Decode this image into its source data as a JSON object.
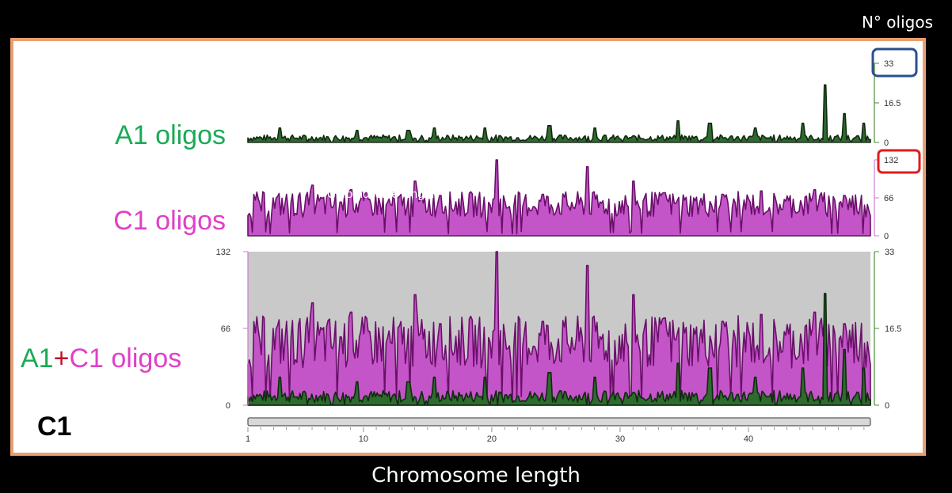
{
  "header": {
    "right_label": "N° oligos"
  },
  "footer": {
    "axis_title": "Chromosome length"
  },
  "panel": {
    "corner_label": "C1",
    "rows": {
      "a1": {
        "text": "A1 oligos",
        "color": "#1aaa55"
      },
      "c1": {
        "text": "C1 oligos",
        "color": "#e040c8"
      },
      "combo": {
        "part1": "A1",
        "plus": "+",
        "part2": "C1 oligos"
      }
    },
    "overlay_text": "Chromosome length"
  },
  "colors": {
    "frame": "#e9a070",
    "a1_fill": "#2e6b2e",
    "a1_line": "#0f2a0f",
    "c1_fill": "#c455c8",
    "c1_line": "#6b0f6b",
    "track_bg": "#c9c9c9",
    "highlight_a1": "#2a4f8f",
    "highlight_c1": "#e01b1b"
  },
  "chart_data": {
    "type": "area",
    "x_range": [
      1,
      49.5
    ],
    "x_ticks": [
      1,
      10,
      20,
      30,
      40
    ],
    "tracks": [
      {
        "name": "A1 oligos",
        "ylim": [
          0,
          33
        ],
        "y_ticks": [
          "0",
          "16.5",
          "33"
        ],
        "peaks": [
          [
            3.5,
            6
          ],
          [
            9.5,
            5
          ],
          [
            13.5,
            5
          ],
          [
            15.5,
            6
          ],
          [
            19.5,
            6
          ],
          [
            24.5,
            7
          ],
          [
            28,
            6
          ],
          [
            34.5,
            9
          ],
          [
            37,
            8
          ],
          [
            40.5,
            6
          ],
          [
            44.2,
            8
          ],
          [
            46,
            24
          ],
          [
            47.5,
            12
          ],
          [
            49,
            8
          ]
        ]
      },
      {
        "name": "C1 oligos",
        "ylim": [
          0,
          132
        ],
        "y_ticks": [
          "0",
          "66",
          "132"
        ],
        "peaks": [
          [
            6,
            88
          ],
          [
            9,
            80
          ],
          [
            14,
            95
          ],
          [
            16,
            70
          ],
          [
            20.4,
            132
          ],
          [
            24,
            72
          ],
          [
            27.5,
            120
          ],
          [
            31,
            95
          ],
          [
            33.5,
            75
          ],
          [
            38,
            72
          ],
          [
            41,
            78
          ],
          [
            45.2,
            80
          ],
          [
            47.5,
            70
          ]
        ]
      },
      {
        "name": "A1+C1 oligos",
        "ylim_left": [
          0,
          132
        ],
        "ylim_right": [
          0,
          33
        ],
        "y_ticks_left": [
          "0",
          "66",
          "132"
        ],
        "y_ticks_right": [
          "0",
          "16.5",
          "33"
        ]
      }
    ]
  }
}
